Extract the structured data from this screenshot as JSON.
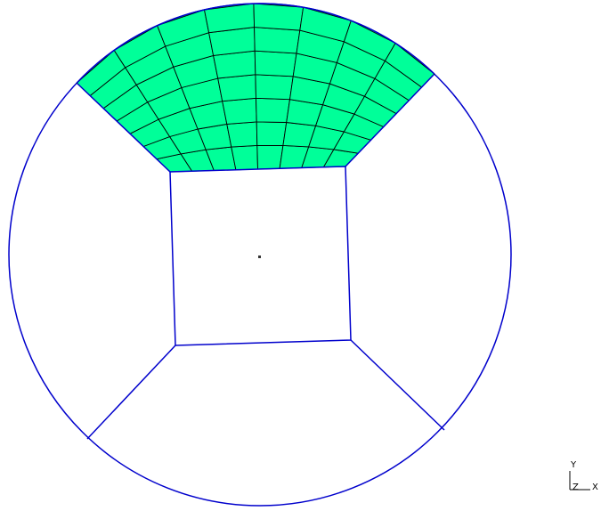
{
  "viewer": {
    "background": "#ffffff",
    "edge_color": "#0000cc",
    "mesh_fill_color": "#00ff99",
    "mesh_line_color": "#000000",
    "mesh": {
      "radial_divisions": 7,
      "circumferential_divisions": 8
    },
    "triad": {
      "y_label": "Y",
      "z_label": "Z",
      "x_label": "X"
    }
  }
}
